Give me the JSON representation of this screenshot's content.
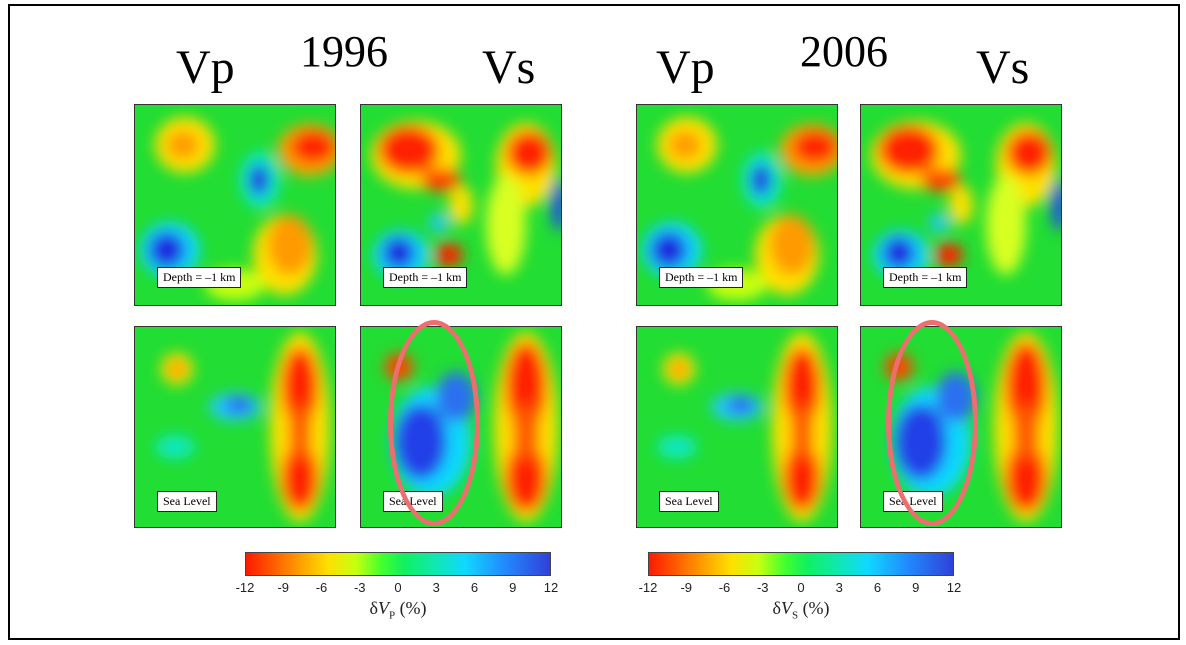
{
  "headings": {
    "left": {
      "vp": "Vp",
      "year": "1996",
      "vs": "Vs"
    },
    "right": {
      "vp": "Vp",
      "year": "2006",
      "vs": "Vs"
    }
  },
  "panel_labels": {
    "depth": "Depth = –1 km",
    "sea": "Sea Level"
  },
  "colorbars": [
    {
      "ticks": [
        "-12",
        "-9",
        "-6",
        "-3",
        "0",
        "3",
        "6",
        "9",
        "12"
      ],
      "title_pre": "δ",
      "title_var": "V",
      "title_sub": "P",
      "title_post": " (%)"
    },
    {
      "ticks": [
        "-12",
        "-9",
        "-6",
        "-3",
        "0",
        "3",
        "6",
        "9",
        "12"
      ],
      "title_pre": "δ",
      "title_var": "V",
      "title_sub": "S",
      "title_post": " (%)"
    }
  ],
  "colors": {
    "green_background": "#22dd33",
    "red_anomaly": "#ff2200",
    "blue_anomaly": "#1a2ce0",
    "highlight_ellipse": "#ec6e6e"
  }
}
